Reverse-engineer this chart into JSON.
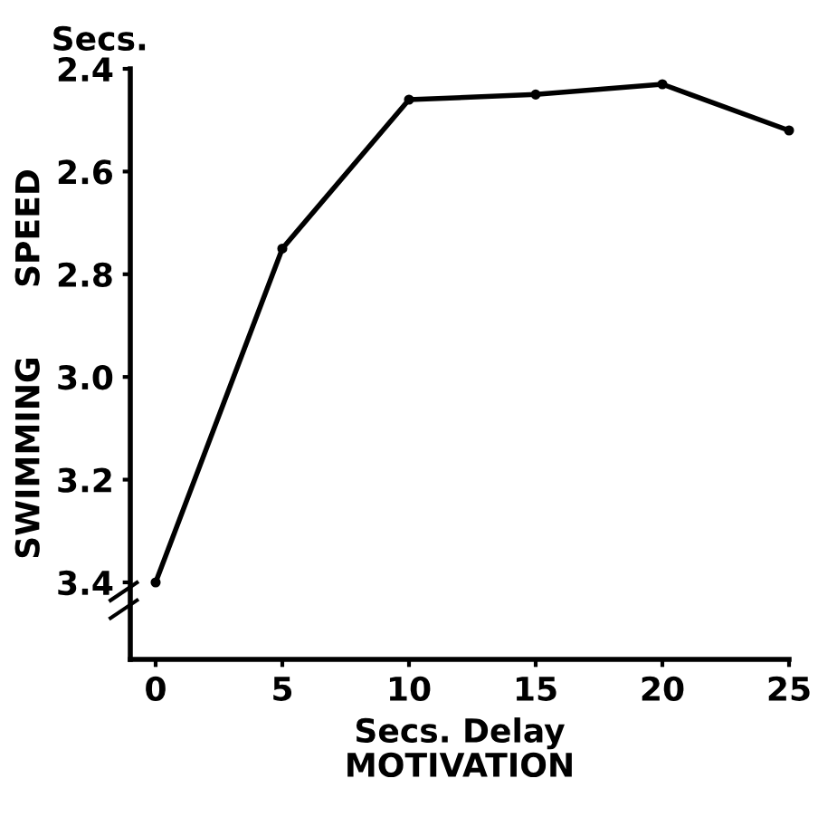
{
  "chart_data": {
    "type": "line",
    "xlabel": "Secs. Delay\nMOTIVATION",
    "ylabel": "SWIMMING      SPEED",
    "annotations": [
      "Secs."
    ],
    "x": [
      0,
      5,
      10,
      15,
      20,
      25
    ],
    "values": [
      3.4,
      2.75,
      2.46,
      2.45,
      2.43,
      2.52
    ],
    "color": "#000000",
    "marker": "circle",
    "line_style": "solid",
    "xlim": [
      -1,
      25
    ],
    "xticks": [
      0,
      5,
      10,
      15,
      20,
      25
    ],
    "ylim": [
      3.55,
      2.4
    ],
    "yticks": [
      2.4,
      2.6,
      2.8,
      {
        "value": 3.0,
        "label": "3.0"
      },
      3.2,
      3.4
    ],
    "grid": false,
    "legend": false
  }
}
